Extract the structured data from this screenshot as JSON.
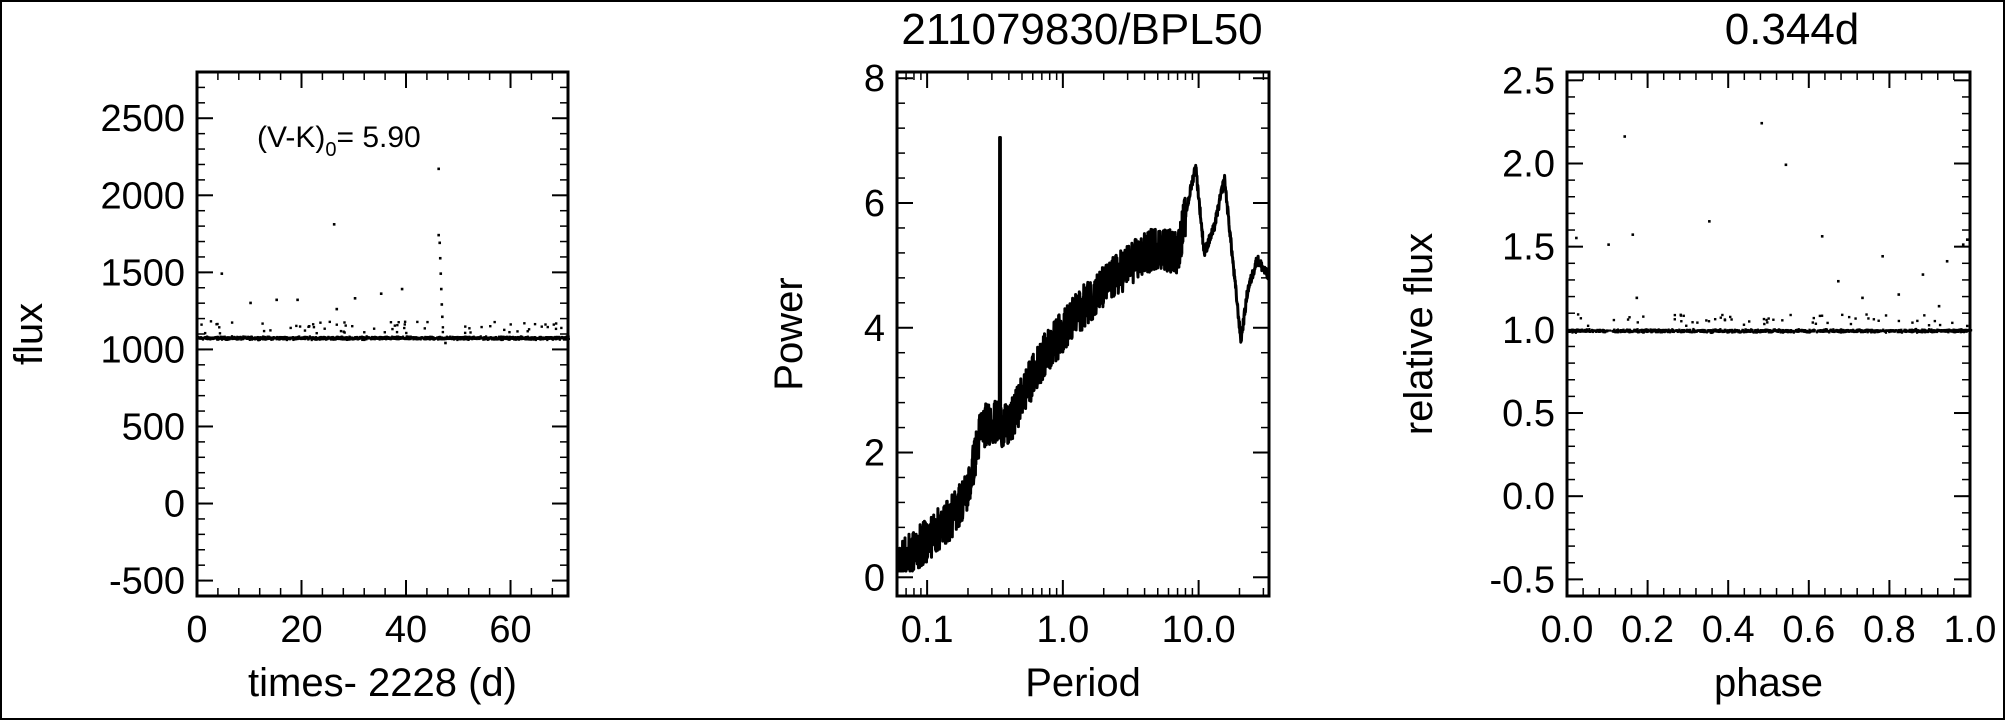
{
  "title": {
    "left": "211079830/BPL50",
    "right": "0.344d"
  },
  "annotation": {
    "prefix": "(V-K)",
    "sub": "0",
    "suffix": "= 5.90"
  },
  "chart_data": [
    {
      "type": "scatter",
      "name": "light-curve",
      "xlabel": "times- 2228 (d)",
      "ylabel": "flux",
      "xlim": [
        0,
        71
      ],
      "ylim": [
        -600,
        2800
      ],
      "xticks": [
        0,
        20,
        40,
        60
      ],
      "xticklabels": [
        "0",
        "20",
        "40",
        "60"
      ],
      "yticks": [
        -500,
        0,
        500,
        1000,
        1500,
        2000,
        2500
      ],
      "yticklabels": [
        "-500",
        "0",
        "500",
        "1000",
        "1500",
        "2000",
        "2500"
      ],
      "baseline_flux": 1080,
      "t_range": [
        0,
        71
      ],
      "outliers": [
        {
          "x": 4.5,
          "y": 1500
        },
        {
          "x": 10,
          "y": 1310
        },
        {
          "x": 15,
          "y": 1330
        },
        {
          "x": 19,
          "y": 1330
        },
        {
          "x": 26,
          "y": 1820
        },
        {
          "x": 26.5,
          "y": 1270
        },
        {
          "x": 30,
          "y": 1340
        },
        {
          "x": 35,
          "y": 1370
        },
        {
          "x": 39,
          "y": 1400
        },
        {
          "x": 46,
          "y": 2180
        },
        {
          "x": 46,
          "y": 1750
        },
        {
          "x": 46.2,
          "y": 1700
        },
        {
          "x": 46.3,
          "y": 1600
        },
        {
          "x": 46.4,
          "y": 1500
        },
        {
          "x": 46.5,
          "y": 1400
        },
        {
          "x": 46.6,
          "y": 1300
        },
        {
          "x": 46.7,
          "y": 1220
        },
        {
          "x": 47.3,
          "y": 1050
        }
      ]
    },
    {
      "type": "line",
      "name": "periodogram",
      "xlabel": "Period",
      "ylabel": "Power",
      "xscale": "log",
      "xlim": [
        0.06,
        33
      ],
      "ylim": [
        -0.3,
        8.1
      ],
      "xticks": [
        0.1,
        1.0,
        10.0
      ],
      "xticklabels": [
        "0.1",
        "1.0",
        "10.0"
      ],
      "yticks": [
        0,
        2,
        4,
        6,
        8
      ],
      "yticklabels": [
        "0",
        "2",
        "4",
        "6",
        "8"
      ],
      "peak": {
        "period": 0.344,
        "power": 7.05
      },
      "envelope": [
        {
          "p": 0.06,
          "pw": 0.2
        },
        {
          "p": 0.08,
          "pw": 0.4
        },
        {
          "p": 0.1,
          "pw": 0.6
        },
        {
          "p": 0.15,
          "pw": 0.95
        },
        {
          "p": 0.2,
          "pw": 1.4
        },
        {
          "p": 0.25,
          "pw": 2.4
        },
        {
          "p": 0.3,
          "pw": 2.5
        },
        {
          "p": 0.4,
          "pw": 2.4
        },
        {
          "p": 0.5,
          "pw": 2.9
        },
        {
          "p": 0.7,
          "pw": 3.5
        },
        {
          "p": 1.0,
          "pw": 3.95
        },
        {
          "p": 1.5,
          "pw": 4.4
        },
        {
          "p": 2.0,
          "pw": 4.65
        },
        {
          "p": 3.0,
          "pw": 5.0
        },
        {
          "p": 5.0,
          "pw": 5.3
        },
        {
          "p": 7.0,
          "pw": 5.2
        },
        {
          "p": 9.5,
          "pw": 6.6
        },
        {
          "p": 11.0,
          "pw": 5.2
        },
        {
          "p": 13.0,
          "pw": 5.6
        },
        {
          "p": 15.5,
          "pw": 6.4
        },
        {
          "p": 18.0,
          "pw": 5.0
        },
        {
          "p": 20.5,
          "pw": 3.8
        },
        {
          "p": 23.0,
          "pw": 4.6
        },
        {
          "p": 27.0,
          "pw": 5.1
        },
        {
          "p": 33.0,
          "pw": 4.8
        }
      ]
    },
    {
      "type": "scatter",
      "name": "phased-curve",
      "xlabel": "phase",
      "ylabel": "relative flux",
      "xlim": [
        0,
        1
      ],
      "ylim": [
        -0.6,
        2.55
      ],
      "xticks": [
        0,
        0.2,
        0.4,
        0.6,
        0.8,
        1.0
      ],
      "xticklabels": [
        "0.0",
        "0.2",
        "0.4",
        "0.6",
        "0.8",
        "1.0"
      ],
      "yticks": [
        -0.5,
        0,
        0.5,
        1.0,
        1.5,
        2.0,
        2.5
      ],
      "yticklabels": [
        "-0.5",
        "0.0",
        "0.5",
        "1.0",
        "1.5",
        "2.0",
        "2.5"
      ],
      "baseline_flux": 1.0,
      "outliers": [
        {
          "x": 0.02,
          "y": 1.56
        },
        {
          "x": 0.1,
          "y": 1.52
        },
        {
          "x": 0.14,
          "y": 2.17
        },
        {
          "x": 0.16,
          "y": 1.58
        },
        {
          "x": 0.17,
          "y": 1.2
        },
        {
          "x": 0.35,
          "y": 1.66
        },
        {
          "x": 0.48,
          "y": 2.25
        },
        {
          "x": 0.54,
          "y": 2.0
        },
        {
          "x": 0.63,
          "y": 1.57
        },
        {
          "x": 0.67,
          "y": 1.3
        },
        {
          "x": 0.78,
          "y": 1.45
        },
        {
          "x": 0.82,
          "y": 1.22
        },
        {
          "x": 0.88,
          "y": 1.34
        },
        {
          "x": 0.94,
          "y": 1.42
        },
        {
          "x": 0.98,
          "y": 1.52
        },
        {
          "x": 0.99,
          "y": 1.55
        },
        {
          "x": 0.73,
          "y": 1.2
        },
        {
          "x": 0.92,
          "y": 1.15
        }
      ]
    }
  ]
}
